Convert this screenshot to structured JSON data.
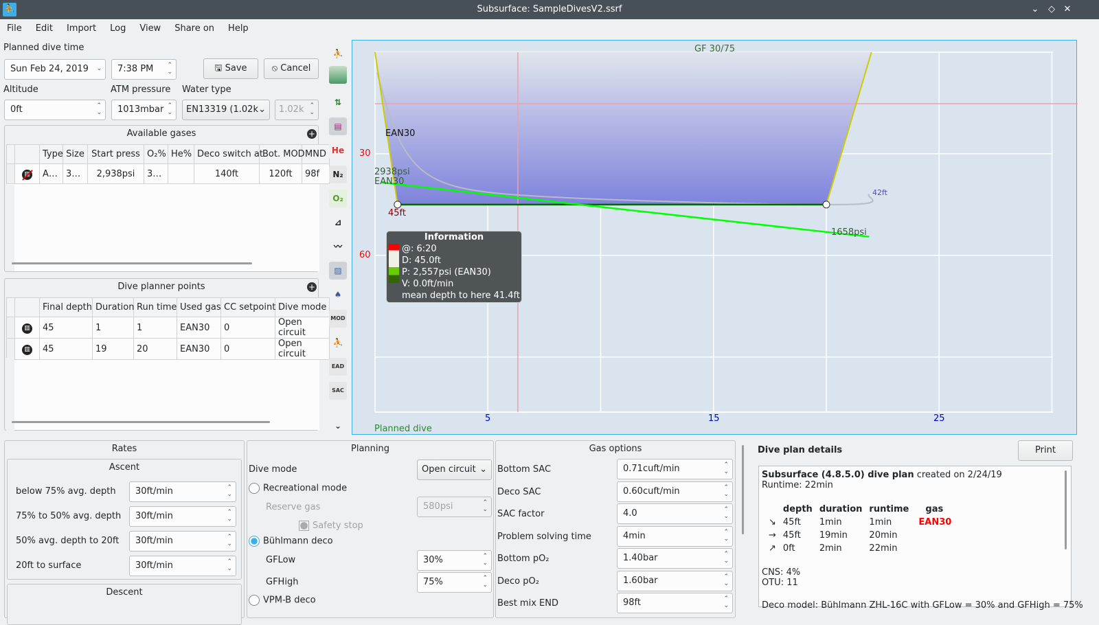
{
  "window": {
    "title": "Subsurface: SampleDivesV2.ssrf"
  },
  "menu": [
    "File",
    "Edit",
    "Import",
    "Log",
    "View",
    "Share on",
    "Help"
  ],
  "form": {
    "planned_label": "Planned dive time",
    "date": "Sun Feb 24, 2019",
    "time": "7:38 PM",
    "save": "Save",
    "cancel": "Cancel",
    "altitude_label": "Altitude",
    "altitude": "0ft",
    "atm_label": "ATM pressure",
    "atm": "1013mbar",
    "water_label": "Water type",
    "water": "EN13319 (1.02k",
    "water_density": "1.02k"
  },
  "gases": {
    "title": "Available gases",
    "headers": [
      "Type",
      "Size",
      "Start press",
      "O₂%",
      "He%",
      "Deco switch at",
      "Bot. MOD",
      "MND"
    ],
    "rows": [
      [
        "A…",
        "3…",
        "2,938psi",
        "3…",
        "",
        "140ft",
        "120ft",
        "98f"
      ]
    ]
  },
  "points": {
    "title": "Dive planner points",
    "headers": [
      "Final depth",
      "Duration",
      "Run time",
      "Used gas",
      "CC setpoint",
      "Dive mode"
    ],
    "rows": [
      [
        "45",
        "1",
        "1",
        "EAN30",
        "0",
        "Open circuit"
      ],
      [
        "45",
        "19",
        "20",
        "EAN30",
        "0",
        "Open circuit"
      ]
    ]
  },
  "toolbar": {
    "he": "He",
    "n2": "N₂",
    "o2": "O₂",
    "mod": "MOD",
    "ead": "EAD",
    "sac": "SAC"
  },
  "profile": {
    "gf_label": "GF 30/75",
    "gas_label": "EAN30",
    "start_pressure": "2938psi",
    "start_gas": "EAN30",
    "depth_label": "45ft",
    "end_pressure": "1658psi",
    "ceiling_label": "42ft",
    "footer": "Planned dive",
    "x_ticks": [
      5,
      15,
      25
    ],
    "y_ticks": [
      30,
      60
    ],
    "points": [
      [
        0,
        0
      ],
      [
        1,
        45
      ],
      [
        20,
        45
      ],
      [
        22,
        0
      ]
    ],
    "info": {
      "title": "Information",
      "lines": [
        "@: 6:20",
        "D: 45.0ft",
        "P: 2,557psi (EAN30)",
        "V: 0.0ft/min",
        "mean depth to here 41.4ft"
      ]
    },
    "colors": {
      "depth_axis": "#ff0000",
      "time_axis": "#0000cc",
      "pressure": "#00ff00",
      "profile": "#cccc00"
    }
  },
  "rates": {
    "title": "Rates",
    "ascent": "Ascent",
    "rows": [
      {
        "label": "below 75% avg. depth",
        "value": "30ft/min"
      },
      {
        "label": "75% to 50% avg. depth",
        "value": "30ft/min"
      },
      {
        "label": "50% avg. depth to 20ft",
        "value": "30ft/min"
      },
      {
        "label": "20ft to surface",
        "value": "30ft/min"
      }
    ],
    "descent": "Descent"
  },
  "planning": {
    "title": "Planning",
    "dive_mode_label": "Dive mode",
    "dive_mode": "Open circuit",
    "recreational": "Recreational mode",
    "reserve_label": "Reserve gas",
    "reserve": "580psi",
    "safety_stop": "Safety stop",
    "buhlmann": "Bühlmann deco",
    "gflow_label": "GFLow",
    "gflow": "30%",
    "gfhigh_label": "GFHigh",
    "gfhigh": "75%",
    "vpm": "VPM-B deco"
  },
  "gas_options": {
    "title": "Gas options",
    "rows": [
      {
        "label": "Bottom SAC",
        "value": "0.71cuft/min"
      },
      {
        "label": "Deco SAC",
        "value": "0.60cuft/min"
      },
      {
        "label": "SAC factor",
        "value": "4.0"
      },
      {
        "label": "Problem solving time",
        "value": "4min"
      },
      {
        "label": "Bottom pO₂",
        "value": "1.40bar"
      },
      {
        "label": "Deco pO₂",
        "value": "1.60bar"
      },
      {
        "label": "Best mix END",
        "value": "98ft"
      }
    ]
  },
  "details": {
    "title": "Dive plan details",
    "print": "Print",
    "heading_bold": "Subsurface (4.8.5.0) dive plan",
    "heading_rest": " created on 2/24/19",
    "runtime": "Runtime: 22min",
    "headers": [
      "depth",
      "duration",
      "runtime",
      "gas"
    ],
    "rows": [
      [
        "↘",
        "45ft",
        "1min",
        "1min",
        "EAN30"
      ],
      [
        "→",
        "45ft",
        "19min",
        "20min",
        ""
      ],
      [
        "↗",
        "0ft",
        "2min",
        "22min",
        ""
      ]
    ],
    "cns": "CNS: 4%",
    "otu": "OTU: 11",
    "deco_model": "Deco model: Bühlmann ZHL-16C with GFLow = 30% and GFHigh = 75%"
  }
}
